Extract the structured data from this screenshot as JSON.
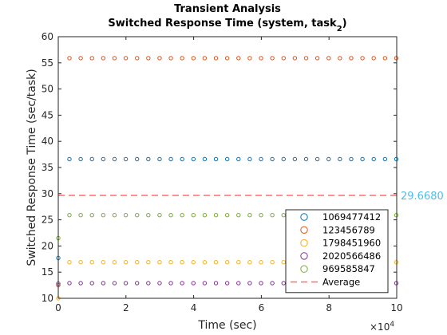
{
  "chart_data": {
    "type": "scatter",
    "title_line1": "Transient Analysis",
    "title_line2_prefix": "Switched Response Time (system, task",
    "title_line2_subscript": "2",
    "title_line2_suffix": ")",
    "xlabel": "Time (sec)",
    "ylabel": "Switched Response Time (sec/task)",
    "x_exponent_base": "×10",
    "x_exponent_power": "4",
    "xlim": [
      0,
      100000
    ],
    "ylim": [
      10,
      60
    ],
    "x_ticks": [
      0,
      20000,
      40000,
      60000,
      80000,
      100000
    ],
    "x_tick_labels": [
      "0",
      "2",
      "4",
      "6",
      "8",
      "10"
    ],
    "y_ticks": [
      10,
      15,
      20,
      25,
      30,
      35,
      40,
      45,
      50,
      55,
      60
    ],
    "y_tick_labels": [
      "10",
      "15",
      "20",
      "25",
      "30",
      "35",
      "40",
      "45",
      "50",
      "55",
      "60"
    ],
    "grid": false,
    "legend_position": "bottom-right",
    "marker_x_start": 3300,
    "marker_x_step": 3330,
    "marker_x_end": 100000,
    "series": [
      {
        "name": "1069477412",
        "color": "#0072BD",
        "start_value": 17.7,
        "value": 36.6
      },
      {
        "name": "123456789",
        "color": "#D95319",
        "start_value": 12.5,
        "value": 55.9
      },
      {
        "name": "1798451960",
        "color": "#EDB120",
        "start_value": 10.0,
        "value": 16.9
      },
      {
        "name": "2020566486",
        "color": "#7E2F8E",
        "start_value": 12.8,
        "value": 12.9
      },
      {
        "name": "969585847",
        "color": "#77AC30",
        "start_value": 21.5,
        "value": 25.9
      }
    ],
    "average": {
      "name": "Average",
      "value": 29.668,
      "label": "29.6680",
      "color": "#FF6B6B",
      "label_color": "#4DBEEE"
    }
  }
}
